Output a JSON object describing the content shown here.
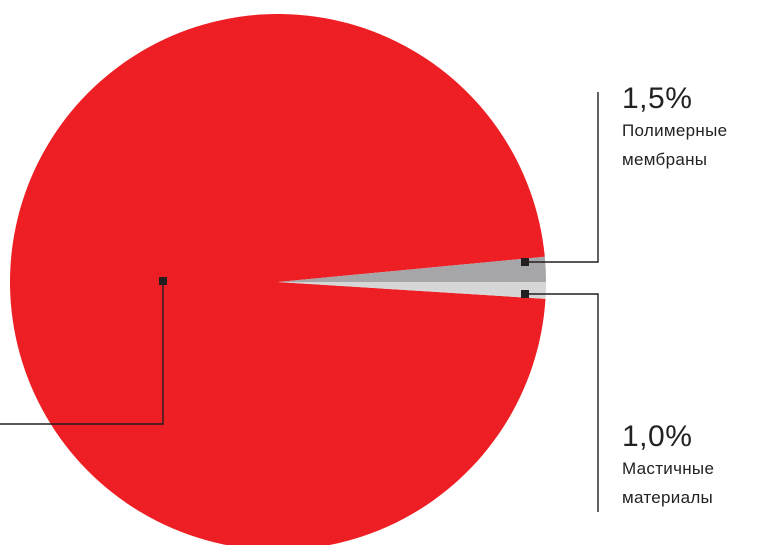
{
  "chart_data": {
    "type": "pie",
    "slices": [
      {
        "label": "",
        "value": 97.5,
        "color": "#ED1F24"
      },
      {
        "label": "Полимерные мембраны",
        "value_text": "1,5%",
        "name_line1": "Полимерные",
        "name_line2": "мембраны",
        "value": 1.5,
        "color": "#A6A6A8"
      },
      {
        "label": "Мастичные материалы",
        "value_text": "1,0%",
        "name_line1": "Мастичные",
        "name_line2": "материалы",
        "value": 1.0,
        "color": "#D6D6D7"
      }
    ],
    "leader_color": "#231F20"
  }
}
